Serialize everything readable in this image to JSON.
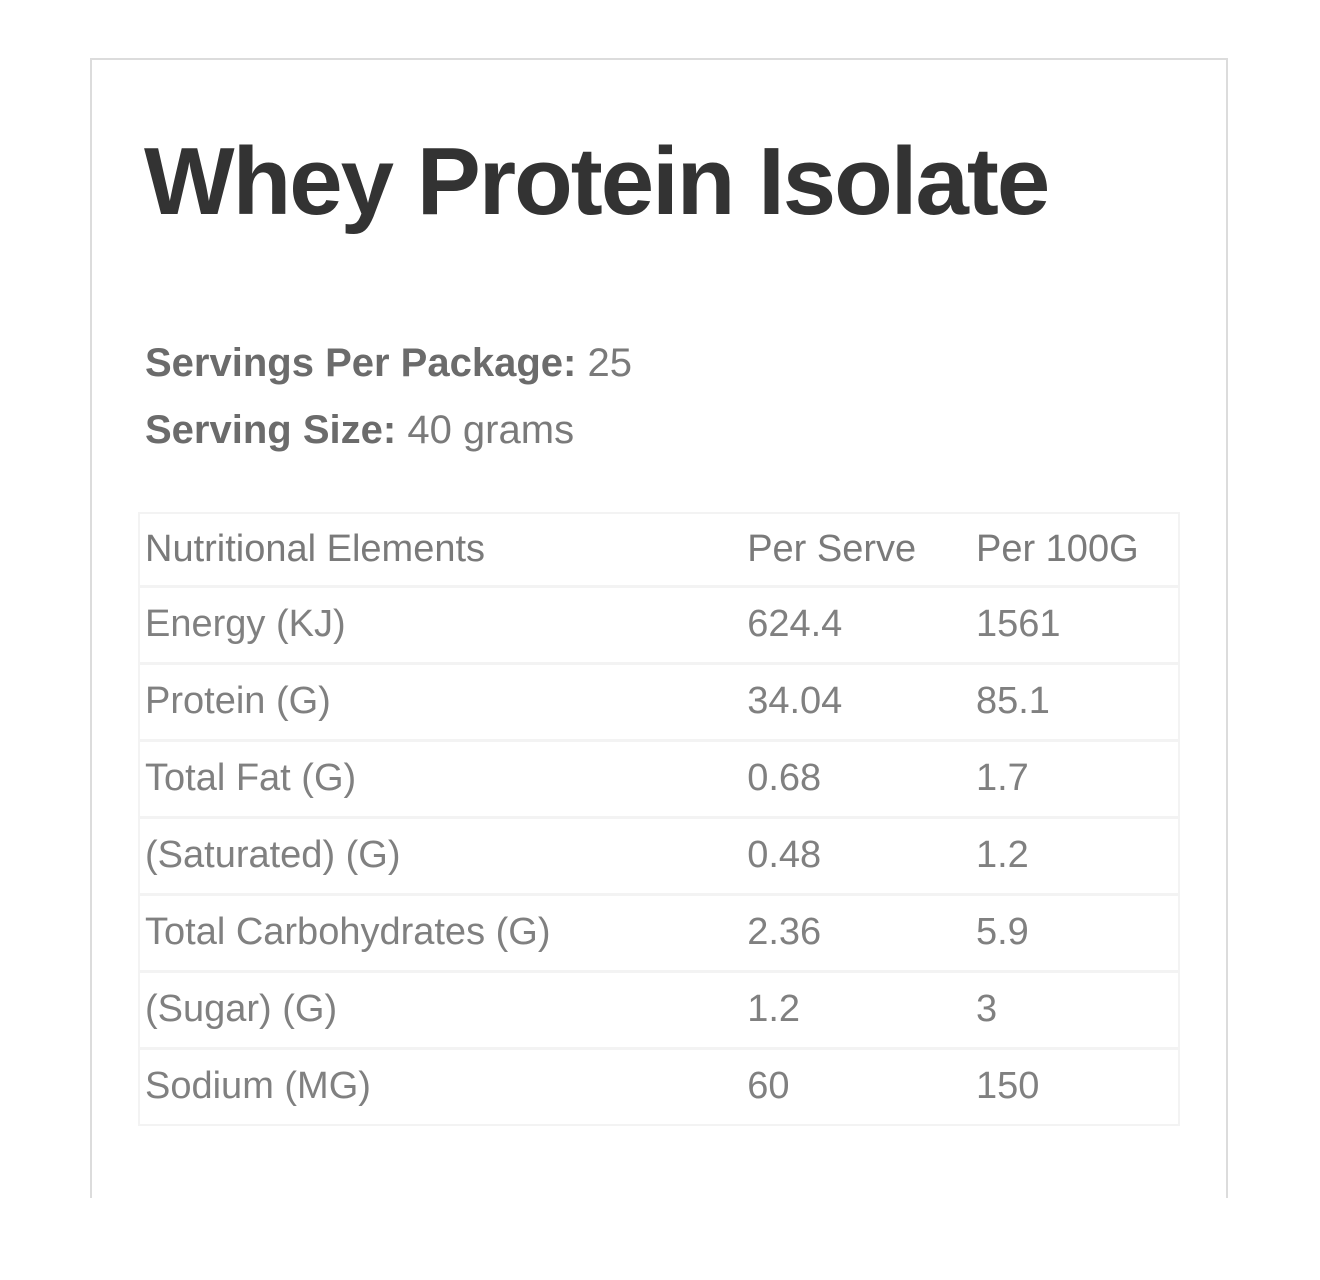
{
  "product": {
    "title": "Whey Protein Isolate",
    "servings_per_package_label": "Servings Per Package:",
    "servings_per_package_value": "25",
    "serving_size_label": "Serving Size:",
    "serving_size_value": "40 grams"
  },
  "nutrition_table": {
    "columns": [
      "Nutritional Elements",
      "Per Serve",
      "Per 100G"
    ],
    "rows": [
      {
        "element": "Energy (KJ)",
        "per_serve": "624.4",
        "per_100g": "1561"
      },
      {
        "element": "Protein (G)",
        "per_serve": "34.04",
        "per_100g": "85.1"
      },
      {
        "element": "Total Fat (G)",
        "per_serve": "0.68",
        "per_100g": "1.7"
      },
      {
        "element": "(Saturated) (G)",
        "per_serve": "0.48",
        "per_100g": "1.2"
      },
      {
        "element": "Total Carbohydrates (G)",
        "per_serve": "2.36",
        "per_100g": "5.9"
      },
      {
        "element": "(Sugar) (G)",
        "per_serve": "1.2",
        "per_100g": "3"
      },
      {
        "element": "Sodium (MG)",
        "per_serve": "60",
        "per_100g": "150"
      }
    ]
  },
  "colors": {
    "title_text": "#333333",
    "body_text": "#808080",
    "label_bold_text": "#6b6b6b",
    "card_border": "#dcdcdc",
    "table_border": "#f3f3f3",
    "background": "#ffffff"
  }
}
